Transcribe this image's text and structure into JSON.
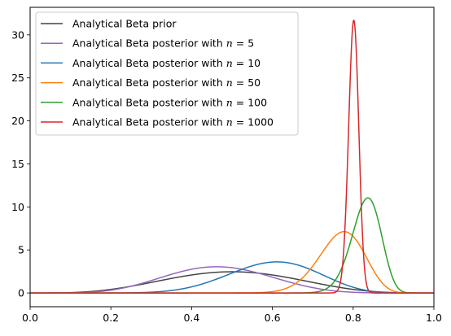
{
  "chart_data": {
    "type": "line",
    "title": "",
    "xlabel": "",
    "ylabel": "",
    "xlim": [
      0,
      1
    ],
    "ylim": [
      -1.6,
      33.2
    ],
    "x_ticks": [
      0.0,
      0.2,
      0.4,
      0.6,
      0.8,
      1.0
    ],
    "x_tick_labels": [
      "0.0",
      "0.2",
      "0.4",
      "0.6",
      "0.8",
      "1.0"
    ],
    "y_ticks": [
      0,
      5,
      10,
      15,
      20,
      25,
      30
    ],
    "y_tick_labels": [
      "0",
      "5",
      "10",
      "15",
      "20",
      "25",
      "30"
    ],
    "grid": false,
    "legend_position": "upper-left",
    "series": [
      {
        "name_prefix": "Analytical Beta prior",
        "name_n": "",
        "color": "#444444",
        "alpha": 5,
        "beta": 5
      },
      {
        "name_prefix": "Analytical Beta posterior with ",
        "name_n": "5",
        "color": "#9467bd",
        "alpha": 7,
        "beta": 8
      },
      {
        "name_prefix": "Analytical Beta posterior with ",
        "name_n": "10",
        "color": "#1f77b4",
        "alpha": 12,
        "beta": 8
      },
      {
        "name_prefix": "Analytical Beta posterior with ",
        "name_n": "50",
        "color": "#ff7f0e",
        "alpha": 43,
        "beta": 13
      },
      {
        "name_prefix": "Analytical Beta posterior with ",
        "name_n": "100",
        "color": "#2ca02c",
        "alpha": 88,
        "beta": 18
      },
      {
        "name_prefix": "Analytical Beta posterior with ",
        "name_n": "1000",
        "color": "#d62728",
        "alpha": 805,
        "beta": 200
      }
    ]
  }
}
